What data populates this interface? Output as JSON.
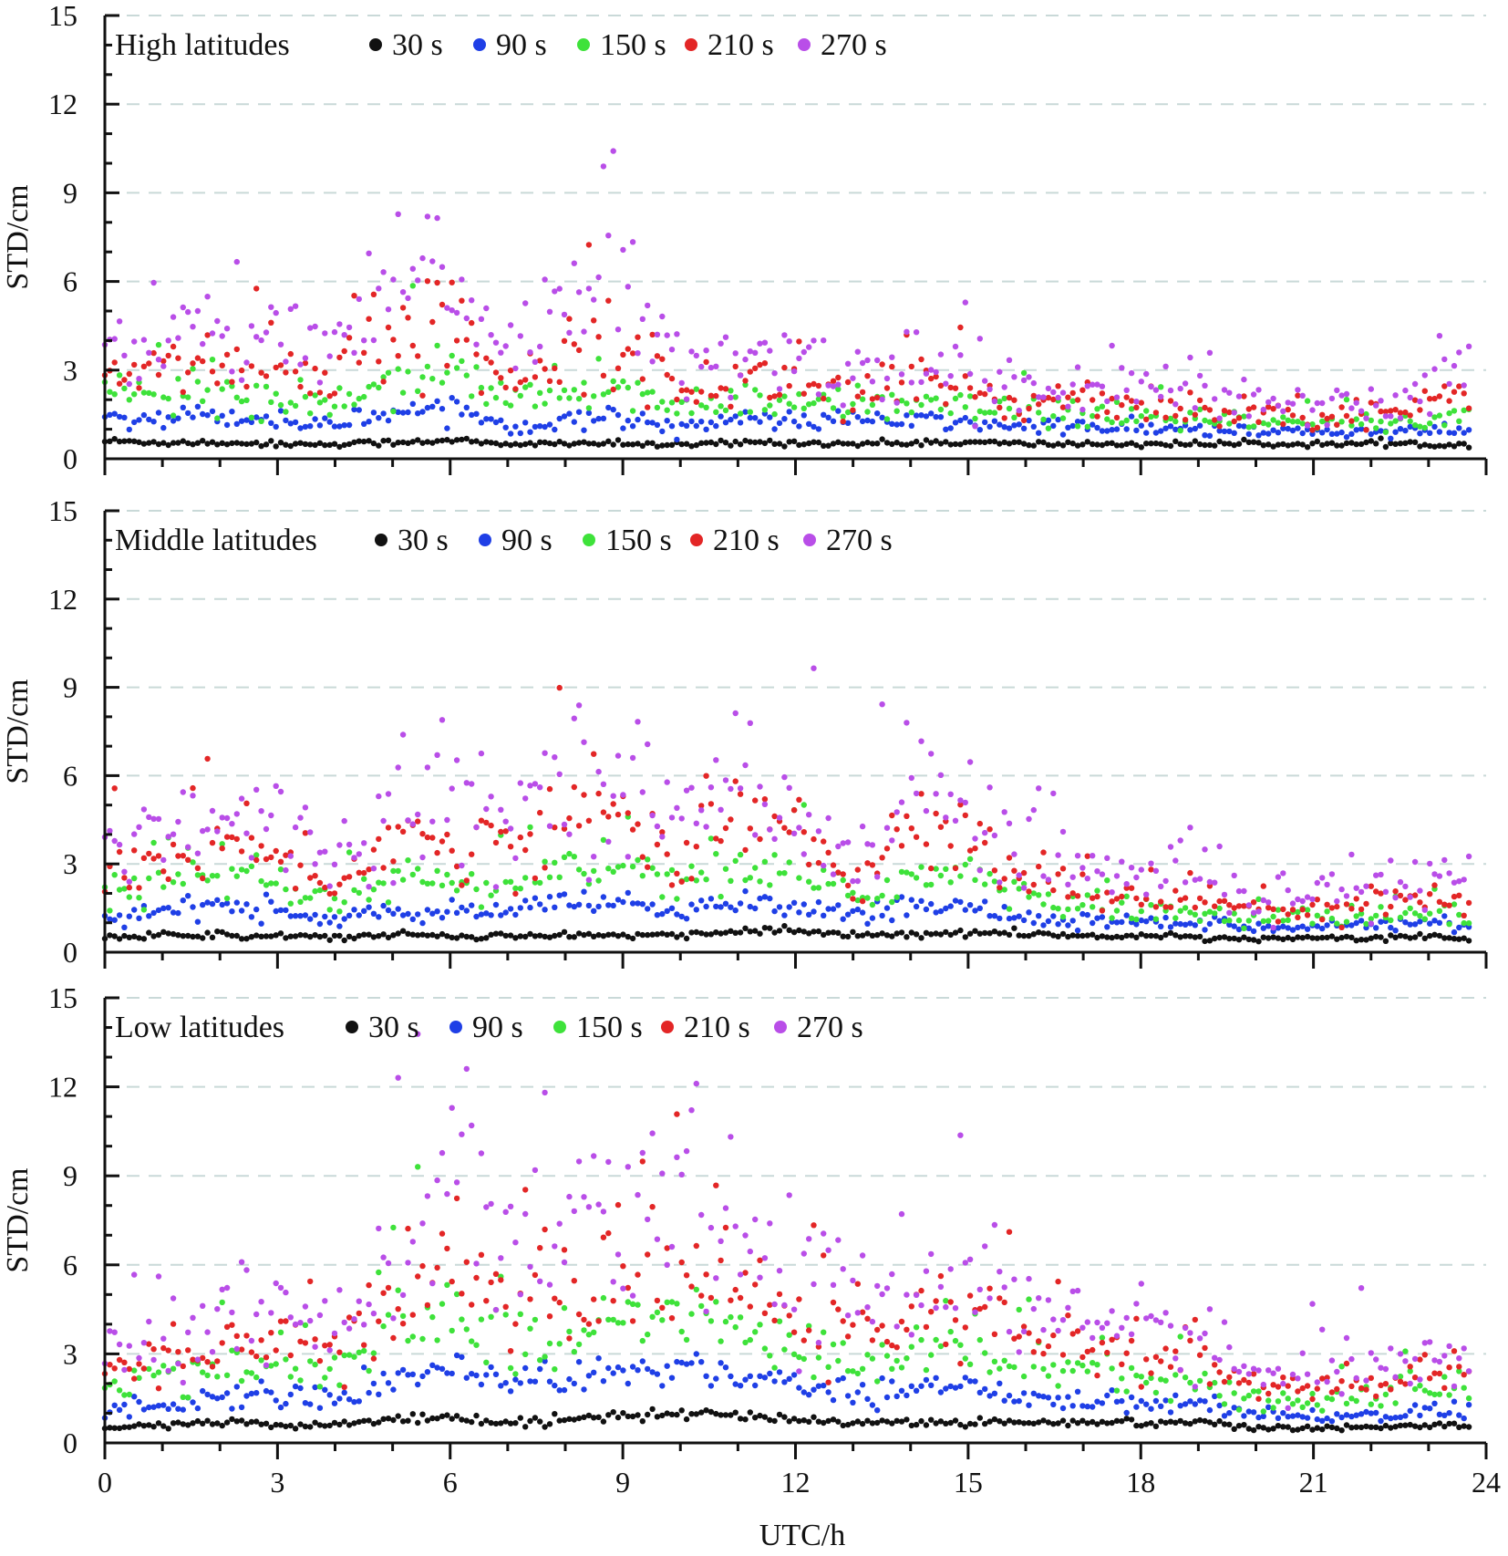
{
  "figure": {
    "xlabel": "UTC/h"
  },
  "chart_data": [
    {
      "type": "scatter",
      "title": "High latitudes",
      "xlabel": "UTC/h",
      "ylabel": "STD/cm",
      "xlim": [
        0,
        24
      ],
      "ylim": [
        0,
        15
      ],
      "x_ticks": [
        "0",
        "3",
        "6",
        "9",
        "12",
        "15",
        "18",
        "21",
        "24"
      ],
      "y_ticks": [
        "0",
        "3",
        "6",
        "9",
        "12",
        "15"
      ],
      "series": [
        {
          "name": "30 s",
          "color": "#111111",
          "x": [
            0,
            1,
            2,
            3,
            4,
            5,
            6,
            7,
            8,
            9,
            10,
            11,
            12,
            13,
            14,
            15,
            16,
            17,
            18,
            19,
            20,
            21,
            22,
            23,
            23.7
          ],
          "values": [
            0.6,
            0.55,
            0.55,
            0.5,
            0.5,
            0.55,
            0.65,
            0.45,
            0.55,
            0.5,
            0.45,
            0.55,
            0.55,
            0.5,
            0.55,
            0.55,
            0.5,
            0.5,
            0.5,
            0.5,
            0.5,
            0.5,
            0.5,
            0.5,
            0.5
          ]
        },
        {
          "name": "90 s",
          "color": "#1f3fe6",
          "x": [
            0,
            1,
            2,
            3,
            4,
            5,
            6,
            7,
            8,
            9,
            10,
            11,
            12,
            13,
            14,
            15,
            16,
            17,
            18,
            19,
            20,
            21,
            22,
            23,
            23.7
          ],
          "values": [
            1.4,
            1.4,
            1.5,
            1.3,
            1.2,
            1.6,
            1.8,
            1.1,
            1.3,
            1.4,
            1.1,
            1.3,
            1.3,
            1.3,
            1.3,
            1.2,
            1.1,
            1.1,
            1.0,
            1.0,
            0.9,
            0.9,
            0.9,
            0.9,
            1.0
          ]
        },
        {
          "name": "150 s",
          "color": "#3ee23a",
          "x": [
            0,
            1,
            2,
            3,
            4,
            5,
            6,
            7,
            8,
            9,
            10,
            11,
            12,
            13,
            14,
            15,
            16,
            17,
            18,
            19,
            20,
            21,
            22,
            23,
            23.7
          ],
          "values": [
            2.3,
            2.3,
            2.2,
            2.0,
            1.8,
            2.8,
            3.2,
            1.9,
            2.2,
            2.5,
            1.6,
            1.9,
            1.9,
            1.8,
            1.8,
            1.7,
            1.5,
            1.5,
            1.4,
            1.3,
            1.2,
            1.2,
            1.2,
            1.3,
            1.5
          ]
        },
        {
          "name": "210 s",
          "color": "#e32626",
          "x": [
            0,
            1,
            2,
            3,
            4,
            5,
            6,
            7,
            8,
            9,
            10,
            11,
            12,
            13,
            14,
            15,
            16,
            17,
            18,
            19,
            20,
            21,
            22,
            23,
            23.7
          ],
          "values": [
            3.0,
            3.2,
            3.3,
            2.9,
            2.8,
            4.1,
            4.6,
            2.7,
            3.8,
            3.9,
            2.3,
            2.7,
            2.6,
            2.4,
            2.3,
            2.2,
            1.9,
            2.2,
            1.8,
            1.7,
            1.6,
            1.6,
            1.6,
            1.7,
            2.4
          ]
        },
        {
          "name": "270 s",
          "color": "#b94ee8",
          "x": [
            0,
            1,
            2,
            3,
            4,
            5,
            6,
            7,
            8,
            9,
            10,
            11,
            12,
            13,
            14,
            15,
            16,
            17,
            18,
            19,
            20,
            21,
            22,
            23,
            23.7
          ],
          "values": [
            4.0,
            4.2,
            4.4,
            3.8,
            3.6,
            5.6,
            6.6,
            3.4,
            5.8,
            5.6,
            2.9,
            3.4,
            3.3,
            3.1,
            3.0,
            2.8,
            2.4,
            2.8,
            2.2,
            2.1,
            2.0,
            1.9,
            1.9,
            2.2,
            3.1
          ]
        }
      ]
    },
    {
      "type": "scatter",
      "title": "Middle latitudes",
      "xlabel": "UTC/h",
      "ylabel": "STD/cm",
      "xlim": [
        0,
        24
      ],
      "ylim": [
        0,
        15
      ],
      "x_ticks": [
        "0",
        "3",
        "6",
        "9",
        "12",
        "15",
        "18",
        "21",
        "24"
      ],
      "y_ticks": [
        "0",
        "3",
        "6",
        "9",
        "12",
        "15"
      ],
      "series": [
        {
          "name": "30 s",
          "color": "#111111",
          "x": [
            0,
            1,
            2,
            3,
            4,
            5,
            6,
            7,
            8,
            9,
            10,
            11,
            12,
            13,
            14,
            15,
            16,
            17,
            18,
            19,
            20,
            21,
            22,
            23,
            23.7
          ],
          "values": [
            0.5,
            0.6,
            0.6,
            0.55,
            0.5,
            0.6,
            0.55,
            0.55,
            0.6,
            0.55,
            0.6,
            0.7,
            0.7,
            0.6,
            0.6,
            0.65,
            0.6,
            0.55,
            0.55,
            0.5,
            0.45,
            0.5,
            0.5,
            0.5,
            0.45
          ]
        },
        {
          "name": "90 s",
          "color": "#1f3fe6",
          "x": [
            0,
            1,
            2,
            3,
            4,
            5,
            6,
            7,
            8,
            9,
            10,
            11,
            12,
            13,
            14,
            15,
            16,
            17,
            18,
            19,
            20,
            21,
            22,
            23,
            23.7
          ],
          "values": [
            1.1,
            1.4,
            1.6,
            1.4,
            1.1,
            1.4,
            1.3,
            1.3,
            1.7,
            1.6,
            1.3,
            1.7,
            1.5,
            1.3,
            1.5,
            1.6,
            1.2,
            1.1,
            1.0,
            1.0,
            0.9,
            0.9,
            0.9,
            1.0,
            0.9
          ]
        },
        {
          "name": "150 s",
          "color": "#3ee23a",
          "x": [
            0,
            1,
            2,
            3,
            4,
            5,
            6,
            7,
            8,
            9,
            10,
            11,
            12,
            13,
            14,
            15,
            16,
            17,
            18,
            19,
            20,
            21,
            22,
            23,
            23.7
          ],
          "values": [
            1.8,
            2.2,
            2.5,
            2.2,
            1.7,
            2.4,
            2.3,
            2.1,
            3.0,
            2.9,
            2.2,
            3.0,
            2.6,
            1.9,
            2.6,
            2.6,
            1.8,
            1.6,
            1.4,
            1.4,
            1.1,
            1.2,
            1.2,
            1.3,
            1.3
          ]
        },
        {
          "name": "210 s",
          "color": "#e32626",
          "x": [
            0,
            1,
            2,
            3,
            4,
            5,
            6,
            7,
            8,
            9,
            10,
            11,
            12,
            13,
            14,
            15,
            16,
            17,
            18,
            19,
            20,
            21,
            22,
            23,
            23.7
          ],
          "values": [
            2.6,
            3.2,
            3.6,
            3.2,
            2.4,
            3.8,
            3.9,
            3.4,
            4.8,
            4.7,
            3.2,
            5.0,
            3.9,
            2.2,
            4.2,
            3.9,
            2.4,
            2.2,
            1.9,
            1.9,
            1.4,
            1.6,
            1.6,
            1.8,
            1.7
          ]
        },
        {
          "name": "270 s",
          "color": "#b94ee8",
          "x": [
            0,
            1,
            2,
            3,
            4,
            5,
            6,
            7,
            8,
            9,
            10,
            11,
            12,
            13,
            14,
            15,
            16,
            17,
            18,
            19,
            20,
            21,
            22,
            23,
            23.7
          ],
          "values": [
            3.5,
            4.4,
            4.9,
            4.4,
            3.2,
            5.0,
            5.2,
            4.6,
            6.3,
            6.0,
            4.1,
            6.6,
            5.1,
            2.8,
            5.9,
            5.0,
            3.1,
            2.9,
            2.4,
            2.4,
            1.8,
            2.1,
            2.1,
            2.5,
            2.4
          ]
        }
      ]
    },
    {
      "type": "scatter",
      "title": "Low latitudes",
      "xlabel": "UTC/h",
      "ylabel": "STD/cm",
      "xlim": [
        0,
        24
      ],
      "ylim": [
        0,
        15
      ],
      "x_ticks": [
        "0",
        "3",
        "6",
        "9",
        "12",
        "15",
        "18",
        "21",
        "24"
      ],
      "y_ticks": [
        "0",
        "3",
        "6",
        "9",
        "12",
        "15"
      ],
      "series": [
        {
          "name": "30 s",
          "color": "#111111",
          "x": [
            0,
            1,
            2,
            3,
            4,
            5,
            6,
            7,
            8,
            9,
            10,
            11,
            12,
            13,
            14,
            15,
            16,
            17,
            18,
            19,
            20,
            21,
            22,
            23,
            23.7
          ],
          "values": [
            0.5,
            0.6,
            0.7,
            0.6,
            0.6,
            0.8,
            0.9,
            0.7,
            0.8,
            0.9,
            1.0,
            0.9,
            0.8,
            0.7,
            0.7,
            0.7,
            0.7,
            0.7,
            0.7,
            0.7,
            0.5,
            0.5,
            0.5,
            0.6,
            0.6
          ]
        },
        {
          "name": "90 s",
          "color": "#1f3fe6",
          "x": [
            0,
            1,
            2,
            3,
            4,
            5,
            6,
            7,
            8,
            9,
            10,
            11,
            12,
            13,
            14,
            15,
            16,
            17,
            18,
            19,
            20,
            21,
            22,
            23,
            23.7
          ],
          "values": [
            1.1,
            1.3,
            1.6,
            1.6,
            1.4,
            2.2,
            2.6,
            2.1,
            2.2,
            2.4,
            2.6,
            2.3,
            1.9,
            1.7,
            1.9,
            1.8,
            1.6,
            1.5,
            1.3,
            1.3,
            1.0,
            0.9,
            0.9,
            1.1,
            1.1
          ]
        },
        {
          "name": "150 s",
          "color": "#3ee23a",
          "x": [
            0,
            1,
            2,
            3,
            4,
            5,
            6,
            7,
            8,
            9,
            10,
            11,
            12,
            13,
            14,
            15,
            16,
            17,
            18,
            19,
            20,
            21,
            22,
            23,
            23.7
          ],
          "values": [
            1.8,
            2.2,
            2.6,
            2.6,
            2.3,
            3.6,
            4.4,
            3.5,
            3.6,
            4.0,
            4.4,
            3.8,
            3.1,
            2.8,
            3.2,
            3.0,
            2.6,
            2.5,
            2.1,
            2.1,
            1.4,
            1.4,
            1.5,
            1.8,
            1.8
          ]
        },
        {
          "name": "210 s",
          "color": "#e32626",
          "x": [
            0,
            1,
            2,
            3,
            4,
            5,
            6,
            7,
            8,
            9,
            10,
            11,
            12,
            13,
            14,
            15,
            16,
            17,
            18,
            19,
            20,
            21,
            22,
            23,
            23.7
          ],
          "values": [
            2.3,
            3.0,
            3.4,
            3.4,
            3.1,
            5.0,
            6.2,
            4.8,
            5.0,
            5.5,
            6.2,
            5.3,
            4.2,
            3.8,
            4.3,
            4.1,
            3.6,
            3.3,
            2.8,
            2.8,
            1.8,
            1.8,
            2.0,
            2.3,
            2.3
          ]
        },
        {
          "name": "270 s",
          "color": "#b94ee8",
          "x": [
            0,
            1,
            2,
            3,
            4,
            5,
            6,
            7,
            8,
            9,
            10,
            11,
            12,
            13,
            14,
            15,
            16,
            17,
            18,
            19,
            20,
            21,
            22,
            23,
            23.7
          ],
          "values": [
            2.9,
            3.9,
            4.4,
            4.5,
            4.0,
            6.6,
            8.5,
            6.4,
            6.6,
            7.4,
            8.4,
            7.1,
            5.5,
            5.0,
            5.7,
            5.4,
            4.7,
            4.4,
            3.7,
            3.7,
            2.2,
            2.2,
            2.5,
            3.0,
            3.0
          ]
        }
      ]
    }
  ]
}
